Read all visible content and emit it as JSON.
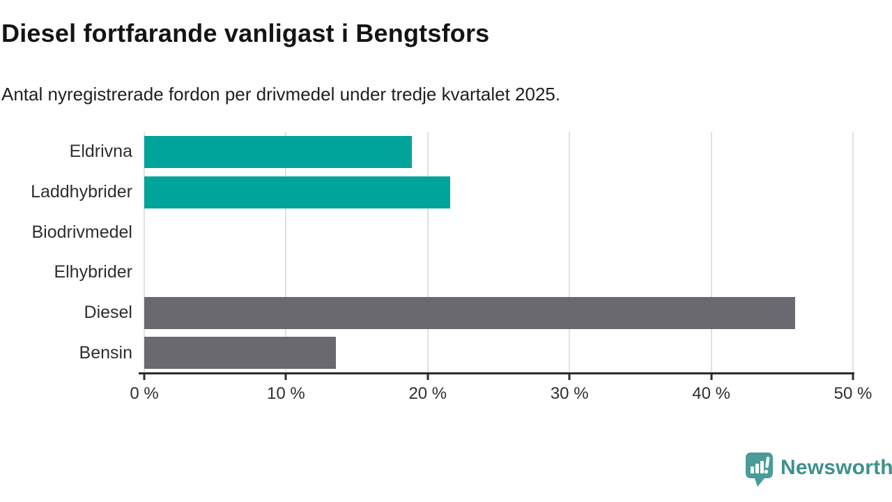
{
  "header": {
    "title": "Diesel fortfarande vanligast i Bengtsfors",
    "subtitle": "Antal nyregistrerade fordon per drivmedel under tredje kvartalet 2025."
  },
  "chart_data": {
    "type": "bar",
    "orientation": "horizontal",
    "title": "Diesel fortfarande vanligast i Bengtsfors",
    "subtitle": "Antal nyregistrerade fordon per drivmedel under tredje kvartalet 2025.",
    "categories": [
      "Eldrivna",
      "Laddhybrider",
      "Biodrivmedel",
      "Elhybrider",
      "Diesel",
      "Bensin"
    ],
    "values": [
      18.9,
      21.6,
      0,
      0,
      45.9,
      13.5
    ],
    "unit": "%",
    "bar_colors": [
      "#00a49a",
      "#00a49a",
      "#00a49a",
      "#00a49a",
      "#6a6970",
      "#6a6970"
    ],
    "x_ticks": [
      "0 %",
      "10 %",
      "20 %",
      "30 %",
      "40 %",
      "50 %"
    ],
    "x_tick_values": [
      0,
      10,
      20,
      30,
      40,
      50
    ],
    "xlim": [
      0,
      50
    ],
    "xlabel": "",
    "ylabel": "",
    "grid": "vertical gridlines only",
    "legend": "none"
  },
  "colors": {
    "teal_bar": "#00a49a",
    "gray_bar": "#6a6970",
    "gridline": "#e1e1e1",
    "axis": "#2b2b2b",
    "text": "#2e2e2e"
  },
  "footer": {
    "brand_label": "Newsworthy",
    "brand_text_color": "#3d918d",
    "brand_icon": "bar-chart-speech-bubble-icon",
    "brand_icon_color": "#4a9c98"
  }
}
